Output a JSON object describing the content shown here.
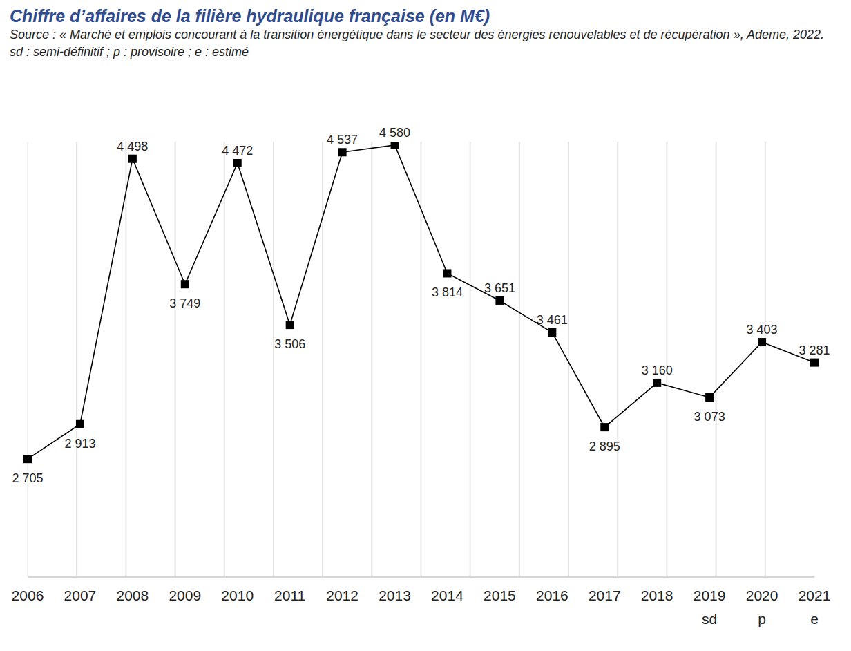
{
  "chart_data": {
    "type": "line",
    "title": "Chiffre d’affaires de la filière hydraulique française (en M€)",
    "subtitle": "Source : « Marché et emplois concourant à la transition énergétique dans le secteur des énergies renouvelables et de récupération », Ademe, 2022.",
    "notes": "sd : semi-définitif ; p : provisoire ; e : estimé",
    "categories": [
      "2006",
      "2007",
      "2008",
      "2009",
      "2010",
      "2011",
      "2012",
      "2013",
      "2014",
      "2015",
      "2016",
      "2017",
      "2018",
      "2019 sd",
      "2020 p",
      "2021 e"
    ],
    "values": [
      2705,
      2913,
      4498,
      3749,
      4472,
      3506,
      4537,
      4580,
      3814,
      3651,
      3461,
      2895,
      3160,
      3073,
      3403,
      3281
    ],
    "value_labels": [
      "2 705",
      "2 913",
      "4 498",
      "3 749",
      "4 472",
      "3 506",
      "4 537",
      "4 580",
      "3 814",
      "3 651",
      "3 461",
      "2 895",
      "3 160",
      "3 073",
      "3 403",
      "3 281"
    ],
    "color": "#000000",
    "marker": "square",
    "line_style": "solid",
    "ylim": [
      2000,
      4600
    ],
    "yticks": [],
    "grid": true,
    "data_labels": true,
    "tick_labels": "x"
  }
}
